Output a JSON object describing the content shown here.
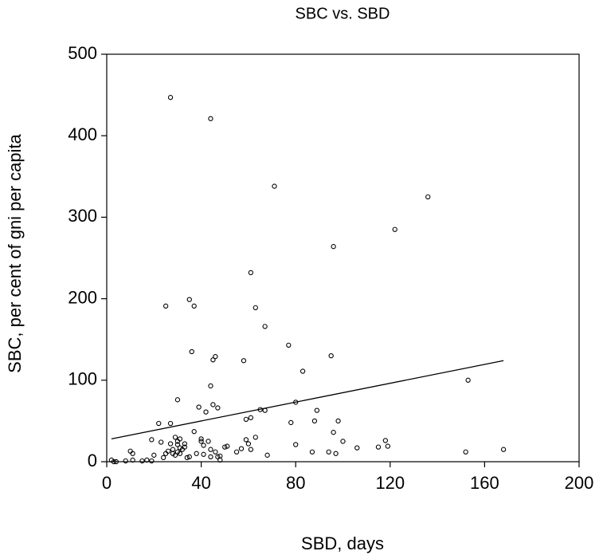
{
  "chart_data": {
    "type": "scatter",
    "title": "SBC vs. SBD",
    "x_label": "SBD, days",
    "y_label": "SBC, per cent of gni per capita",
    "xlim": [
      0,
      200
    ],
    "ylim": [
      0,
      500
    ],
    "xticks": [
      0,
      40,
      80,
      120,
      160,
      200
    ],
    "yticks": [
      0,
      100,
      200,
      300,
      400,
      500
    ],
    "grid": false,
    "color": "#000000",
    "x": [
      27,
      44,
      71,
      136,
      122,
      96,
      61,
      25,
      35,
      37,
      63,
      67,
      36,
      46,
      45,
      58,
      77,
      95,
      83,
      153,
      30,
      44,
      45,
      39,
      47,
      67,
      65,
      42,
      89,
      80,
      61,
      59,
      22,
      27,
      78,
      98,
      88,
      96,
      100,
      106,
      115,
      118,
      119,
      37,
      29,
      30,
      33,
      28,
      31,
      40,
      40,
      43,
      41,
      44,
      46,
      48,
      50,
      51,
      55,
      57,
      59,
      60,
      61,
      63,
      68,
      80,
      87,
      94,
      97,
      152,
      168,
      19,
      23,
      25,
      26,
      28,
      29,
      30,
      31,
      32,
      34,
      35,
      38,
      41,
      44,
      47,
      48,
      24,
      20,
      17,
      19,
      15,
      11,
      10,
      11,
      8,
      2,
      3,
      4,
      30,
      31,
      33,
      27
    ],
    "values": [
      447,
      421,
      338,
      325,
      285,
      264,
      232,
      191,
      199,
      191,
      189,
      166,
      135,
      129,
      125,
      124,
      143,
      130,
      111,
      100,
      76,
      93,
      70,
      67,
      66,
      63,
      64,
      61,
      63,
      73,
      54,
      52,
      47,
      47,
      48,
      50,
      50,
      36,
      25,
      17,
      18,
      26,
      19,
      37,
      30,
      25,
      18,
      15,
      28,
      28,
      25,
      25,
      20,
      15,
      12,
      7,
      18,
      19,
      12,
      16,
      27,
      22,
      15,
      30,
      8,
      21,
      12,
      12,
      10,
      12,
      15,
      27,
      24,
      10,
      13,
      10,
      8,
      12,
      10,
      15,
      5,
      6,
      10,
      9,
      6,
      6,
      2,
      5,
      8,
      2,
      1,
      1,
      2,
      13,
      10,
      1,
      2,
      0,
      0,
      21,
      17,
      22,
      22
    ],
    "fit": {
      "x": [
        2,
        168
      ],
      "y": [
        28,
        124
      ]
    }
  }
}
